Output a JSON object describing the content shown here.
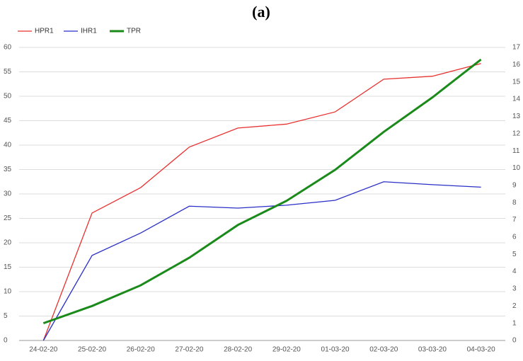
{
  "chart_data": {
    "type": "line",
    "title": "(a)",
    "categories": [
      "24-02-20",
      "25-02-20",
      "26-02-20",
      "27-02-20",
      "28-02-20",
      "29-02-20",
      "01-03-20",
      "02-03-20",
      "03-03-20",
      "04-03-20"
    ],
    "series": [
      {
        "name": "HPR1",
        "color": "#e8312f",
        "values": [
          0,
          26.1,
          31.3,
          39.6,
          43.5,
          44.3,
          46.8,
          53.5,
          54.1,
          56.7
        ]
      },
      {
        "name": "IHR1",
        "color": "#2a2fc7",
        "values": [
          0,
          17.4,
          22.0,
          27.5,
          27.1,
          27.7,
          28.7,
          32.5,
          31.9,
          31.4
        ]
      },
      {
        "name": "TPR",
        "color": "#1a8a1a",
        "axis": "y2",
        "values": [
          1,
          2,
          3.2,
          4.8,
          6.7,
          8.1,
          9.9,
          12.1,
          14.1,
          16.3
        ]
      }
    ],
    "ylim": [
      0,
      60
    ],
    "yticks": [
      0,
      5,
      10,
      15,
      20,
      25,
      30,
      35,
      40,
      45,
      50,
      55,
      60
    ],
    "y2lim": [
      0,
      17
    ],
    "y2ticks": [
      0,
      1,
      2,
      3,
      4,
      5,
      6,
      7,
      8,
      9,
      10,
      11,
      12,
      13,
      14,
      15,
      16,
      17
    ],
    "grid": true,
    "legend": "top-left"
  }
}
